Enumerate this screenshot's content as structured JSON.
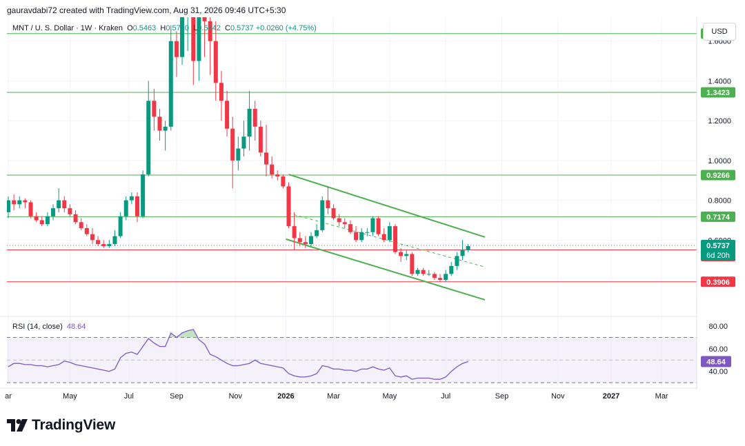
{
  "header": {
    "created_by": "gauravdabi72 created with TradingView.com, Aug 31, 2026 09:46 UTC+5:30"
  },
  "legend": {
    "symbol": "MNT / U. S. Dollar · 1W · Kraken",
    "o_label": "O",
    "o_value": "0.5463",
    "h_label": "H",
    "h_value": "0.5780",
    "l_label": "L",
    "l_value": "0.5442",
    "c_label": "C",
    "c_value": "0.5737",
    "change": "+0.0260 (+4.75%)"
  },
  "currency_button": "USD",
  "rsi": {
    "label": "RSI (14, close)",
    "value": "48.64"
  },
  "logo": {
    "text": "TradingView"
  },
  "colors": {
    "up": "#089981",
    "down": "#f23645",
    "green_line": "#4caf50",
    "red_line": "#f23645",
    "rsi_line": "#7e57c2",
    "rsi_band": "#ede7f6"
  },
  "chart_data": [
    {
      "type": "candlestick",
      "title": "MNT / U. S. Dollar · 1W · Kraken",
      "ylim": [
        0.22,
        1.72
      ],
      "y_ticks": [
        1.6,
        1.4,
        1.2,
        1.0,
        0.8,
        0.6
      ],
      "y_tick_labels": [
        "1.6000",
        "1.4000",
        "1.2000",
        "1.0000",
        "0.8000",
        "0.6000"
      ],
      "x_tick_labels": [
        "ar",
        "May",
        "Jul",
        "Sep",
        "Nov",
        "2026",
        "Mar",
        "May",
        "Jul",
        "Sep",
        "Nov",
        "2027",
        "Mar"
      ],
      "x_tick_weeks": [
        0,
        11,
        21.5,
        30,
        40.5,
        49.5,
        58,
        68,
        78,
        88,
        98,
        107.5,
        116.5
      ],
      "candles": [
        [
          0.74,
          0.8,
          0.71,
          0.82
        ],
        [
          0.8,
          0.78,
          0.75,
          0.83
        ],
        [
          0.78,
          0.8,
          0.76,
          0.82
        ],
        [
          0.8,
          0.79,
          0.76,
          0.81
        ],
        [
          0.79,
          0.72,
          0.71,
          0.8
        ],
        [
          0.72,
          0.7,
          0.69,
          0.74
        ],
        [
          0.7,
          0.68,
          0.67,
          0.72
        ],
        [
          0.68,
          0.72,
          0.67,
          0.74
        ],
        [
          0.72,
          0.76,
          0.7,
          0.78
        ],
        [
          0.76,
          0.8,
          0.74,
          0.86
        ],
        [
          0.8,
          0.76,
          0.74,
          0.82
        ],
        [
          0.76,
          0.73,
          0.72,
          0.78
        ],
        [
          0.73,
          0.69,
          0.68,
          0.75
        ],
        [
          0.69,
          0.66,
          0.65,
          0.71
        ],
        [
          0.66,
          0.63,
          0.62,
          0.68
        ],
        [
          0.63,
          0.6,
          0.58,
          0.66
        ],
        [
          0.6,
          0.58,
          0.57,
          0.62
        ],
        [
          0.58,
          0.57,
          0.56,
          0.6
        ],
        [
          0.57,
          0.58,
          0.56,
          0.6
        ],
        [
          0.58,
          0.62,
          0.57,
          0.65
        ],
        [
          0.62,
          0.72,
          0.61,
          0.74
        ],
        [
          0.72,
          0.8,
          0.7,
          0.82
        ],
        [
          0.8,
          0.82,
          0.78,
          0.84
        ],
        [
          0.82,
          0.72,
          0.69,
          0.84
        ],
        [
          0.72,
          0.93,
          0.71,
          0.95
        ],
        [
          0.93,
          1.3,
          0.92,
          1.4
        ],
        [
          1.3,
          1.22,
          1.15,
          1.36
        ],
        [
          1.22,
          1.15,
          1.1,
          1.26
        ],
        [
          1.15,
          1.17,
          1.05,
          1.2
        ],
        [
          1.17,
          1.6,
          1.15,
          1.68
        ],
        [
          1.6,
          1.52,
          1.42,
          1.65
        ],
        [
          1.52,
          1.8,
          1.48,
          1.9
        ],
        [
          1.8,
          1.95,
          1.55,
          2.0
        ],
        [
          1.95,
          1.5,
          1.38,
          2.0
        ],
        [
          1.5,
          1.85,
          1.4,
          1.9
        ],
        [
          1.85,
          1.7,
          1.52,
          1.9
        ],
        [
          1.7,
          1.6,
          1.43,
          1.8
        ],
        [
          1.6,
          1.39,
          1.3,
          1.7
        ],
        [
          1.39,
          1.3,
          1.2,
          1.45
        ],
        [
          1.3,
          1.16,
          1.12,
          1.35
        ],
        [
          1.16,
          1.0,
          0.86,
          1.22
        ],
        [
          1.0,
          1.06,
          0.95,
          1.12
        ],
        [
          1.06,
          1.12,
          1.02,
          1.2
        ],
        [
          1.12,
          1.26,
          1.05,
          1.35
        ],
        [
          1.26,
          1.17,
          1.1,
          1.3
        ],
        [
          1.17,
          1.04,
          1.02,
          1.2
        ],
        [
          1.04,
          0.98,
          0.92,
          1.18
        ],
        [
          0.98,
          0.93,
          0.91,
          1.02
        ],
        [
          0.93,
          0.92,
          0.9,
          0.95
        ],
        [
          0.92,
          0.87,
          0.86,
          0.93
        ],
        [
          0.87,
          0.67,
          0.66,
          0.89
        ],
        [
          0.67,
          0.61,
          0.55,
          0.74
        ],
        [
          0.61,
          0.59,
          0.57,
          0.64
        ],
        [
          0.59,
          0.58,
          0.56,
          0.62
        ],
        [
          0.58,
          0.62,
          0.57,
          0.64
        ],
        [
          0.62,
          0.65,
          0.61,
          0.68
        ],
        [
          0.65,
          0.8,
          0.64,
          0.82
        ],
        [
          0.8,
          0.76,
          0.73,
          0.87
        ],
        [
          0.76,
          0.71,
          0.7,
          0.78
        ],
        [
          0.71,
          0.69,
          0.67,
          0.73
        ],
        [
          0.69,
          0.68,
          0.66,
          0.71
        ],
        [
          0.68,
          0.64,
          0.63,
          0.7
        ],
        [
          0.64,
          0.6,
          0.59,
          0.67
        ],
        [
          0.6,
          0.64,
          0.59,
          0.66
        ],
        [
          0.64,
          0.64,
          0.62,
          0.66
        ],
        [
          0.64,
          0.71,
          0.62,
          0.72
        ],
        [
          0.71,
          0.63,
          0.62,
          0.72
        ],
        [
          0.63,
          0.6,
          0.59,
          0.66
        ],
        [
          0.6,
          0.67,
          0.59,
          0.69
        ],
        [
          0.67,
          0.54,
          0.53,
          0.68
        ],
        [
          0.54,
          0.52,
          0.49,
          0.56
        ],
        [
          0.52,
          0.53,
          0.5,
          0.55
        ],
        [
          0.53,
          0.43,
          0.42,
          0.54
        ],
        [
          0.43,
          0.45,
          0.42,
          0.46
        ],
        [
          0.45,
          0.43,
          0.42,
          0.46
        ],
        [
          0.43,
          0.43,
          0.42,
          0.45
        ],
        [
          0.43,
          0.41,
          0.4,
          0.44
        ],
        [
          0.41,
          0.4,
          0.39,
          0.43
        ],
        [
          0.4,
          0.43,
          0.39,
          0.45
        ],
        [
          0.43,
          0.47,
          0.42,
          0.49
        ],
        [
          0.47,
          0.52,
          0.45,
          0.54
        ],
        [
          0.52,
          0.55,
          0.5,
          0.6
        ],
        [
          0.55,
          0.57,
          0.54,
          0.58
        ]
      ],
      "horizontal_levels": [
        {
          "price": 1.6379,
          "label": "1.6379",
          "color": "green"
        },
        {
          "price": 1.3423,
          "label": "1.3423",
          "color": "green"
        },
        {
          "price": 0.9266,
          "label": "0.9266",
          "color": "green"
        },
        {
          "price": 0.7174,
          "label": "0.7174",
          "color": "green"
        },
        {
          "price": 0.5509,
          "label": "0.5509",
          "color": "red"
        },
        {
          "price": 0.3906,
          "label": "0.3906",
          "color": "red"
        }
      ],
      "last_price": {
        "value": 0.5737,
        "label": "0.5737",
        "countdown": "6d 20h"
      },
      "channel": {
        "upper": [
          [
            50,
            0.93
          ],
          [
            85,
            0.615
          ]
        ],
        "lower": [
          [
            49.5,
            0.605
          ],
          [
            85,
            0.3
          ]
        ],
        "mid": [
          [
            50,
            0.735
          ],
          [
            85,
            0.465
          ]
        ]
      }
    },
    {
      "type": "line",
      "title": "RSI (14, close)",
      "ylim": [
        27,
        88
      ],
      "y_ticks": [
        80,
        60,
        40
      ],
      "y_tick_labels": [
        "80.00",
        "60.00",
        "40.00"
      ],
      "band": [
        30,
        70
      ],
      "midline": 50,
      "last_value": 48.64,
      "last_label": "48.64",
      "values": [
        44,
        47,
        47,
        46,
        46,
        45,
        45,
        44,
        45,
        46,
        49,
        48,
        46,
        45,
        44,
        43,
        42,
        41,
        40,
        42,
        52,
        56,
        57,
        55,
        62,
        69,
        65,
        62,
        62,
        74,
        70,
        74,
        76,
        77,
        68,
        64,
        55,
        53,
        50,
        47,
        45,
        45,
        46,
        47,
        50,
        47,
        46,
        45,
        44,
        43,
        38,
        36,
        35,
        35,
        36,
        38,
        45,
        44,
        42,
        42,
        41,
        41,
        40,
        42,
        42,
        44,
        42,
        41,
        43,
        36,
        35,
        36,
        33,
        34,
        34,
        34,
        33,
        33,
        35,
        40,
        44,
        47,
        48.64
      ]
    }
  ]
}
